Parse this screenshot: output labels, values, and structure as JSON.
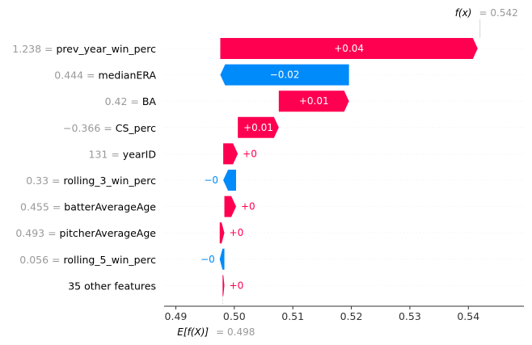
{
  "chart_data": {
    "type": "waterfall",
    "base_value": 0.498,
    "base_label": "E[f(X)]",
    "base_value_text": "= 0.498",
    "output_value": 0.542,
    "output_label": "f(x)",
    "output_value_text": "= 0.542",
    "features": [
      {
        "value": "1.238",
        "name": "prev_year_win_perc",
        "contribution": 0.044,
        "label": "+0.04"
      },
      {
        "value": "0.444",
        "name": "medianERA",
        "contribution": -0.022,
        "label": "−0.02"
      },
      {
        "value": "0.42",
        "name": "BA",
        "contribution": 0.012,
        "label": "+0.01"
      },
      {
        "value": "−0.366",
        "name": "CS_perc",
        "contribution": 0.007,
        "label": "+0.01"
      },
      {
        "value": "131",
        "name": "yearID",
        "contribution": 0.0025,
        "label": "+0"
      },
      {
        "value": "0.33",
        "name": "rolling_3_win_perc",
        "contribution": -0.0022,
        "label": "−0"
      },
      {
        "value": "0.455",
        "name": "batterAverageAge",
        "contribution": 0.002,
        "label": "+0"
      },
      {
        "value": "0.493",
        "name": "pitcherAverageAge",
        "contribution": 0.0008,
        "label": "+0"
      },
      {
        "value": "0.056",
        "name": "rolling_5_win_perc",
        "contribution": -0.0008,
        "label": "−0"
      },
      {
        "value": "",
        "name": "35 other features",
        "contribution": 0.0003,
        "label": "+0"
      }
    ],
    "x_ticks": [
      0.49,
      0.5,
      0.51,
      0.52,
      0.53,
      0.54
    ],
    "x_tick_labels": [
      "0.49",
      "0.50",
      "0.51",
      "0.52",
      "0.53",
      "0.54"
    ],
    "xlim": [
      0.488,
      0.5495
    ],
    "colors": {
      "positive": "#ff0051",
      "negative": "#008bfb"
    }
  }
}
